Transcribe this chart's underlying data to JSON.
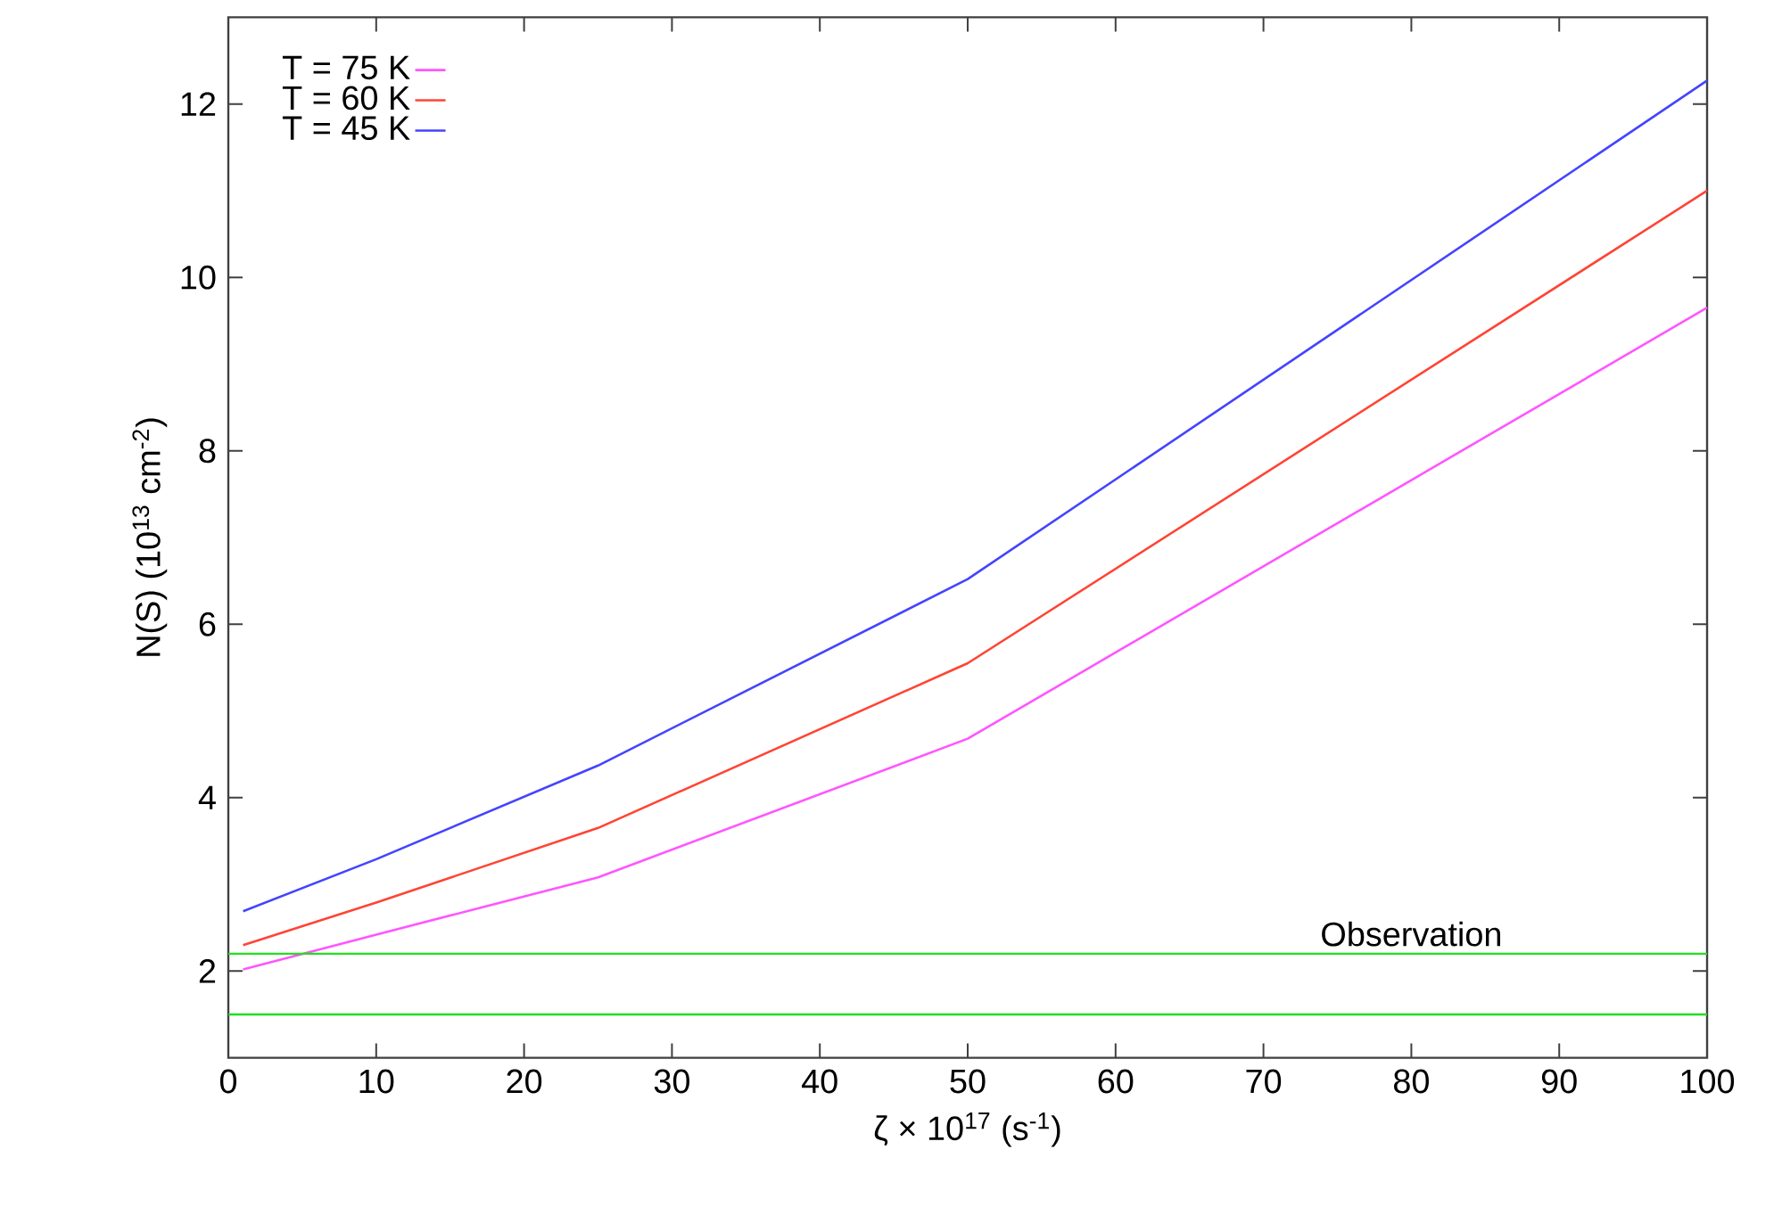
{
  "chart_data": {
    "type": "line",
    "xlabel": "ζ × 10$^{17}$ (s$^{-1}$)",
    "ylabel": "N(S)    (10$^{13}$ cm$^{-2}$)",
    "x": [
      1,
      10,
      25,
      50,
      100
    ],
    "series": [
      {
        "name": "T = 75 K",
        "color": "#ff55ff",
        "values": [
          2.02,
          2.42,
          3.08,
          4.68,
          9.65
        ]
      },
      {
        "name": "T = 60 K",
        "color": "#ff4433",
        "values": [
          2.3,
          2.79,
          3.65,
          5.55,
          11.0
        ]
      },
      {
        "name": "T = 45 K",
        "color": "#4444ff",
        "values": [
          2.69,
          3.29,
          4.37,
          6.52,
          12.27
        ]
      }
    ],
    "ref_lines": [
      {
        "axis": "y",
        "value": 2.2,
        "label": "Observation",
        "color": "#22dd22"
      },
      {
        "axis": "y",
        "value": 1.5,
        "color": "#22dd22"
      }
    ],
    "xlim": [
      0,
      100
    ],
    "ylim": [
      1,
      13
    ],
    "xticks": [
      0,
      10,
      20,
      30,
      40,
      50,
      60,
      70,
      80,
      90,
      100
    ],
    "yticks": [
      2,
      4,
      6,
      8,
      10,
      12
    ],
    "legend": "top left"
  }
}
